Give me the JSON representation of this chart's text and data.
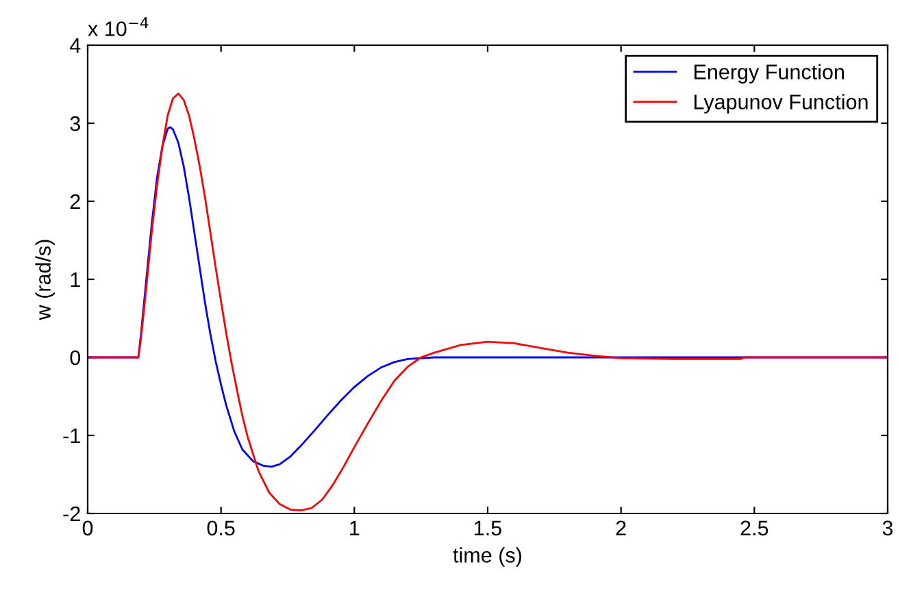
{
  "chart_data": {
    "type": "line",
    "xlabel": "time (s)",
    "ylabel": "w (rad/s)",
    "annotations": [
      "x 10$^{−4}$"
    ],
    "xlim": [
      0,
      3
    ],
    "xticks": [
      0,
      0.5,
      1,
      1.5,
      2,
      2.5,
      3
    ],
    "ylim": [
      -2,
      4
    ],
    "yticks": [
      -2,
      -1,
      0,
      1,
      2,
      3,
      4
    ],
    "grid": false,
    "legend": "top right",
    "marker": "none",
    "line_style": "solid",
    "series": [
      {
        "name": "Energy Function",
        "color": "#0000ff",
        "x": [
          0,
          0.19,
          0.2,
          0.22,
          0.24,
          0.26,
          0.28,
          0.3,
          0.31,
          0.32,
          0.34,
          0.36,
          0.38,
          0.4,
          0.42,
          0.44,
          0.46,
          0.48,
          0.5,
          0.52,
          0.55,
          0.58,
          0.62,
          0.66,
          0.69,
          0.72,
          0.76,
          0.8,
          0.85,
          0.9,
          0.95,
          1.0,
          1.05,
          1.1,
          1.15,
          1.2,
          1.3,
          1.5,
          2.0,
          2.5,
          3.0
        ],
        "values": [
          0,
          0,
          0.3,
          1.0,
          1.7,
          2.3,
          2.7,
          2.93,
          2.95,
          2.92,
          2.75,
          2.45,
          2.05,
          1.6,
          1.15,
          0.7,
          0.3,
          -0.05,
          -0.35,
          -0.62,
          -0.95,
          -1.18,
          -1.33,
          -1.39,
          -1.4,
          -1.37,
          -1.27,
          -1.13,
          -0.94,
          -0.74,
          -0.55,
          -0.38,
          -0.24,
          -0.13,
          -0.06,
          -0.02,
          0,
          0,
          0,
          0,
          0
        ]
      },
      {
        "name": "Lyapunov Function",
        "color": "#ff0000",
        "x": [
          0,
          0.19,
          0.2,
          0.22,
          0.24,
          0.26,
          0.28,
          0.3,
          0.32,
          0.34,
          0.36,
          0.38,
          0.4,
          0.42,
          0.44,
          0.46,
          0.48,
          0.5,
          0.52,
          0.54,
          0.56,
          0.58,
          0.6,
          0.64,
          0.68,
          0.72,
          0.76,
          0.8,
          0.84,
          0.88,
          0.92,
          0.96,
          1.0,
          1.05,
          1.1,
          1.15,
          1.2,
          1.25,
          1.3,
          1.4,
          1.5,
          1.6,
          1.7,
          1.8,
          1.9,
          2.0,
          2.2,
          2.45,
          2.46,
          3.0
        ],
        "values": [
          0,
          0,
          0.25,
          0.9,
          1.6,
          2.2,
          2.7,
          3.1,
          3.32,
          3.38,
          3.3,
          3.1,
          2.8,
          2.45,
          2.05,
          1.6,
          1.15,
          0.72,
          0.3,
          -0.08,
          -0.42,
          -0.75,
          -1.02,
          -1.45,
          -1.73,
          -1.88,
          -1.95,
          -1.96,
          -1.93,
          -1.82,
          -1.63,
          -1.4,
          -1.15,
          -0.85,
          -0.56,
          -0.3,
          -0.12,
          0,
          0.06,
          0.16,
          0.2,
          0.18,
          0.12,
          0.06,
          0.02,
          -0.01,
          -0.02,
          -0.02,
          0,
          0
        ]
      }
    ]
  }
}
